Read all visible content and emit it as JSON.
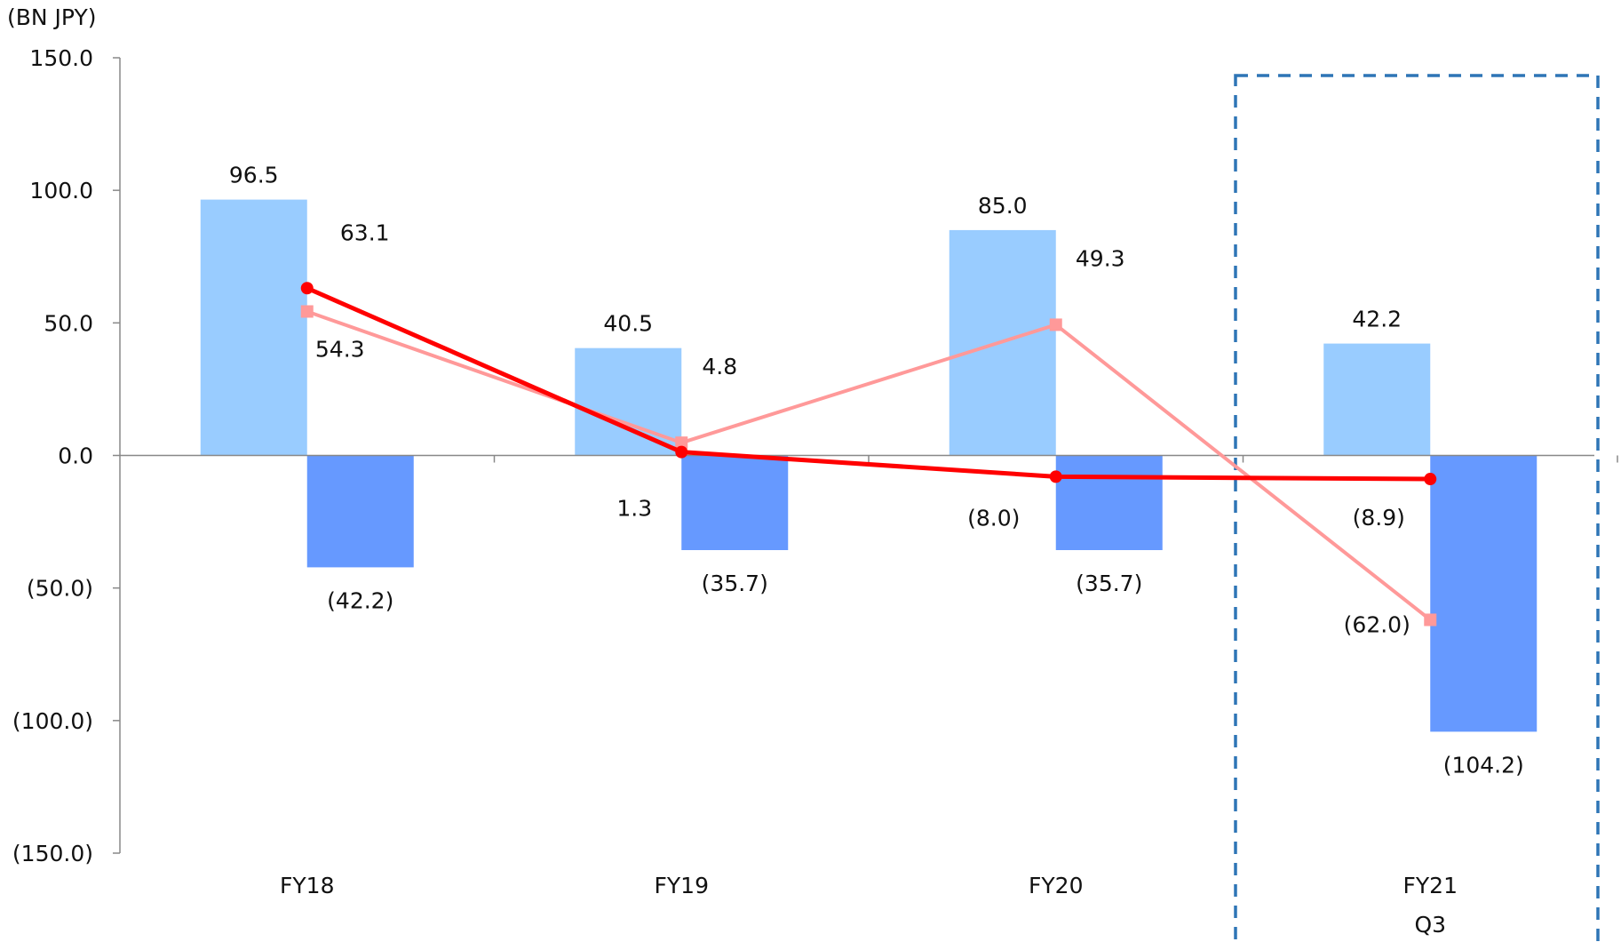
{
  "chart_data": {
    "type": "bar",
    "unit_label": "(BN JPY)",
    "categories": [
      "FY18",
      "FY19",
      "FY20",
      "FY21"
    ],
    "category_sublabels": [
      "",
      "",
      "",
      "Q3"
    ],
    "ylim": [
      -150,
      150
    ],
    "yticks": [
      150,
      100,
      50,
      0,
      -50,
      -100,
      -150
    ],
    "ytick_labels": [
      "150.0",
      "100.0",
      "50.0",
      "0.0",
      "(50.0)",
      "(100.0)",
      "(150.0)"
    ],
    "grid": false,
    "highlight_category": "FY21",
    "series": [
      {
        "kind": "bar",
        "color": "#99CCFF",
        "values": [
          96.5,
          40.5,
          85.0,
          42.2
        ],
        "labels": [
          "96.5",
          "40.5",
          "85.0",
          "42.2"
        ]
      },
      {
        "kind": "bar",
        "color": "#6699FF",
        "values": [
          -42.2,
          -35.7,
          -35.7,
          -104.2
        ],
        "labels": [
          "(42.2)",
          "(35.7)",
          "(35.7)",
          "(104.2)"
        ]
      },
      {
        "kind": "line",
        "color": "#FF0000",
        "marker": "circle",
        "values": [
          63.1,
          1.3,
          -8.0,
          -8.9
        ],
        "labels": [
          "63.1",
          "1.3",
          "(8.0)",
          "(8.9)"
        ]
      },
      {
        "kind": "line",
        "color": "#FF9999",
        "marker": "square",
        "values": [
          54.3,
          4.8,
          49.3,
          -62.0
        ],
        "labels": [
          "54.3",
          "4.8",
          "49.3",
          "(62.0)"
        ]
      }
    ]
  }
}
